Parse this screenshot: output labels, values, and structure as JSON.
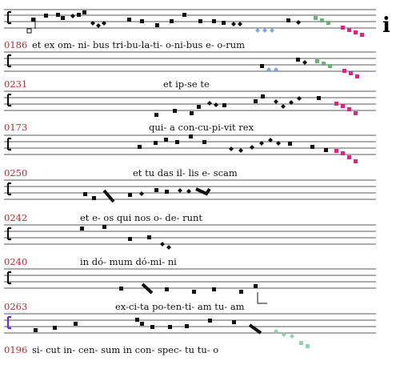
{
  "page": {
    "edge_mark": "i"
  },
  "colors": {
    "ink": "#111111",
    "id": "#c0262d",
    "blue": "#7fa6e8",
    "green": "#6db07a",
    "magenta": "#e0218a",
    "teal": "#8fd3b0",
    "clef_purple": "#6a2bd9"
  },
  "rows": [
    {
      "id": "",
      "text": ""
    },
    {
      "id": "0186",
      "text": "et ex om- ni- bus tri-bu-la-ti- o-ni-bus e- o-rum"
    },
    {
      "id": "0231",
      "text": "et ip-se te"
    },
    {
      "id": "0173",
      "text": "qui- a con-cu-pi-vit rex"
    },
    {
      "id": "0250",
      "text": "et tu das il- lis e- scam"
    },
    {
      "id": "0242",
      "text": "et e- os qui nos o- de- runt"
    },
    {
      "id": "0240",
      "text": "in dó- mum dó-mi- ni"
    },
    {
      "id": "0263",
      "text": "ex-ci-ta po-ten-ti- am tu- am"
    },
    {
      "id": "0196",
      "text": "si- cut in- cen- sum in con- spec- tu tu- o"
    }
  ]
}
